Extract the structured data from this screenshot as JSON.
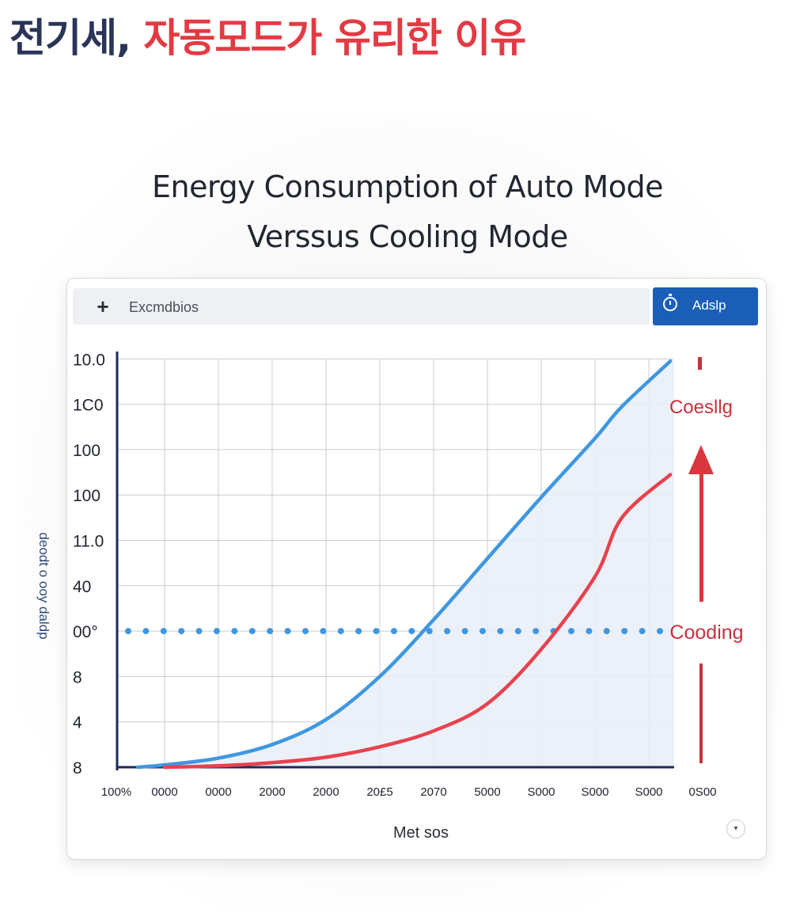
{
  "headline": {
    "part1": "전기세,",
    "part2": "자동모드가 유리한 이유"
  },
  "toolbar": {
    "label": "Excmdbios",
    "button_label": "Adslp"
  },
  "icons": {
    "plus": "plus-icon",
    "timer": "timer-icon",
    "expand": "chevron-down-icon"
  },
  "colors": {
    "auto_line": "#3f97e0",
    "cooling_line": "#e8424f",
    "area_fill": "#e9eef8",
    "axis": "#1f2a55",
    "grid": "#c8ccd3",
    "annotation_text": "#c8323c"
  },
  "chart_data": {
    "type": "line",
    "title_line1": "Energy Consumption of Auto Mode",
    "title_line2": "Verssus Cooling Mode",
    "xlabel": "Met sos",
    "ylabel": "deodt o ooy daldp",
    "y_tick_labels": [
      "10.0",
      "1C0",
      "100",
      "100",
      "11.0",
      "40",
      "00°",
      "8",
      "4",
      "8"
    ],
    "x_tick_labels": [
      "100%",
      "0000",
      "0000",
      "2000",
      "2000",
      "20£5",
      "2070",
      "5000",
      "S000",
      "S000",
      "S000",
      "0S00"
    ],
    "x_index_range": [
      0,
      11
    ],
    "y_index_range": [
      0,
      9
    ],
    "grid": true,
    "series": [
      {
        "name": "Coesllg",
        "color": "#3f97e0",
        "x": [
          0.5,
          1,
          2,
          3,
          4,
          5,
          6,
          7,
          8,
          9,
          9.5,
          10.4
        ],
        "y": [
          0,
          0.05,
          0.2,
          0.5,
          1.05,
          2.0,
          3.25,
          4.6,
          5.95,
          7.25,
          7.95,
          8.95
        ]
      },
      {
        "name": "Cooding",
        "color": "#e8424f",
        "x": [
          1,
          2,
          3,
          4,
          5,
          6,
          7,
          8,
          9,
          9.5,
          10.4
        ],
        "y": [
          0,
          0.03,
          0.1,
          0.22,
          0.45,
          0.8,
          1.4,
          2.6,
          4.2,
          5.5,
          6.45
        ]
      }
    ],
    "reference_line": {
      "y_index": 3
    },
    "annotations": [
      {
        "text": "Coesllg",
        "position": "top-right"
      },
      {
        "text": "Cooding",
        "position": "middle-right"
      }
    ]
  }
}
